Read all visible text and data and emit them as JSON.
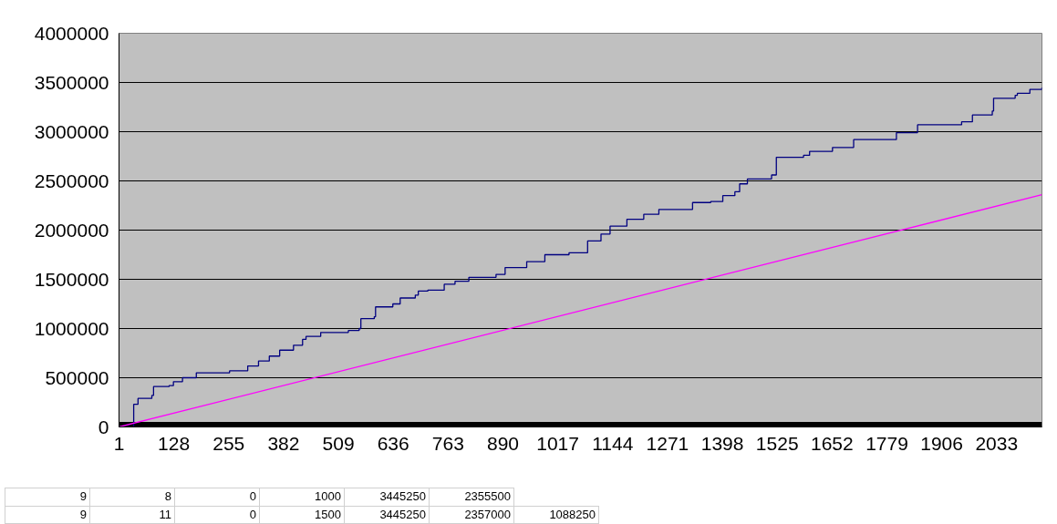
{
  "chart_data": {
    "type": "step",
    "series": [
      {
        "type": "area",
        "color": "#000000",
        "x": [
          1,
          2138
        ],
        "values": [
          50000,
          50000
        ]
      },
      {
        "color": "#000080",
        "x": [
          1,
          35,
          45,
          77,
          81,
          117,
          127,
          148,
          180,
          257,
          299,
          324,
          349,
          373,
          405,
          426,
          434,
          468,
          532,
          557,
          561,
          592,
          595,
          635,
          652,
          687,
          694,
          716,
          754,
          779,
          811,
          874,
          895,
          945,
          987,
          1043,
          1086,
          1117,
          1138,
          1177,
          1216,
          1251,
          1329,
          1371,
          1399,
          1427,
          1438,
          1456,
          1512,
          1523,
          1586,
          1600,
          1653,
          1702,
          1801,
          1850,
          1952,
          1977,
          2023,
          2026,
          2076,
          2081,
          2110,
          2138
        ],
        "values": [
          0,
          230000,
          290000,
          320000,
          410000,
          420000,
          460000,
          500000,
          550000,
          570000,
          620000,
          670000,
          720000,
          780000,
          830000,
          890000,
          920000,
          960000,
          980000,
          1000000,
          1100000,
          1120000,
          1220000,
          1250000,
          1310000,
          1340000,
          1380000,
          1390000,
          1450000,
          1480000,
          1520000,
          1550000,
          1620000,
          1680000,
          1750000,
          1770000,
          1890000,
          1960000,
          2040000,
          2110000,
          2160000,
          2210000,
          2280000,
          2290000,
          2350000,
          2390000,
          2470000,
          2520000,
          2560000,
          2740000,
          2760000,
          2800000,
          2840000,
          2920000,
          2990000,
          3070000,
          3100000,
          3170000,
          3210000,
          3340000,
          3370000,
          3390000,
          3430000,
          3450000
        ]
      },
      {
        "type": "line",
        "color": "#ff00ff",
        "x": [
          1,
          2138
        ],
        "values": [
          0,
          2360000
        ]
      }
    ],
    "xlim": [
      1,
      2138
    ],
    "xticks": [
      1,
      128,
      255,
      382,
      509,
      636,
      763,
      890,
      1017,
      1144,
      1271,
      1398,
      1525,
      1652,
      1779,
      1906,
      2033
    ],
    "ylim": [
      0,
      4000000
    ],
    "yticks": [
      0,
      500000,
      1000000,
      1500000,
      2000000,
      2500000,
      3000000,
      3500000,
      4000000
    ],
    "grid": "y",
    "annotations": [
      "9 8 0 1000 3445250 2355500",
      "9 11 0 1500 3445250 2357000 1088250"
    ]
  }
}
